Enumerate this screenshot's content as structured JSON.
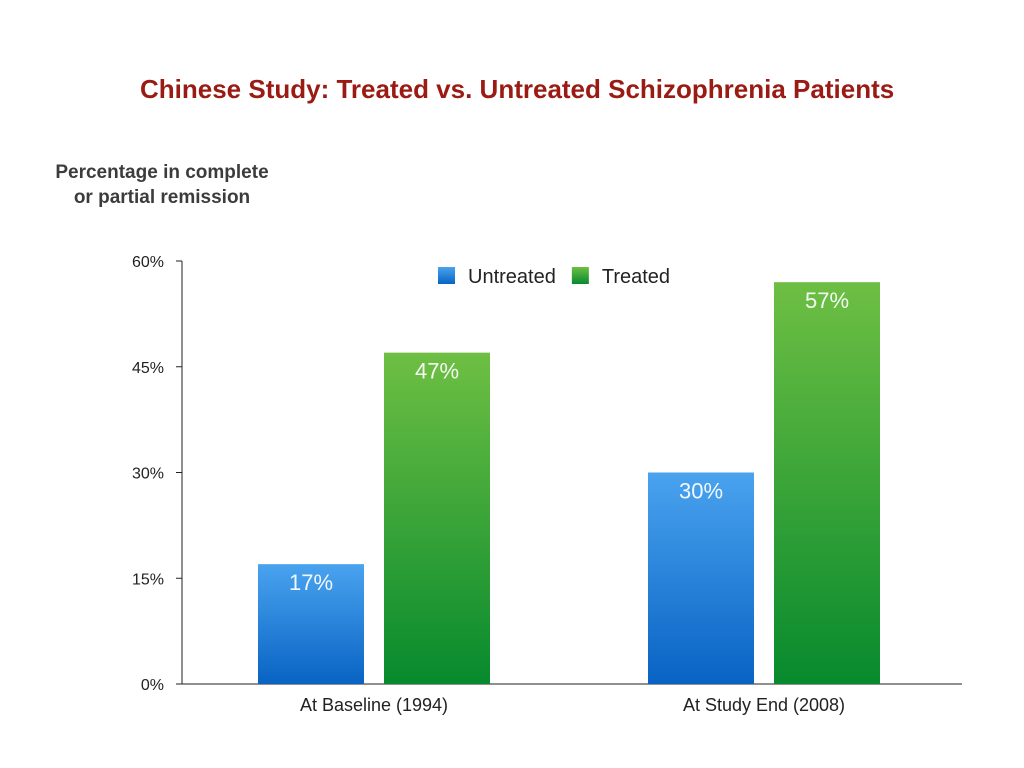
{
  "title": "Chinese Study: Treated vs. Untreated Schizophrenia Patients",
  "colors": {
    "title": "#9a1b14",
    "untreated_top": "#4aa3ee",
    "untreated_bottom": "#0863c4",
    "treated_top": "#6ebf43",
    "treated_bottom": "#078a2e"
  },
  "chart_data": {
    "type": "bar",
    "title": "Chinese Study: Treated vs. Untreated Schizophrenia Patients",
    "ylabel_lines": [
      "Percentage in complete",
      "or partial remission"
    ],
    "xlabel": "",
    "categories": [
      "At Baseline (1994)",
      "At Study End (2008)"
    ],
    "series": [
      {
        "name": "Untreated",
        "values": [
          17,
          30
        ],
        "labels": [
          "17%",
          "30%"
        ],
        "color": "#2f86dc"
      },
      {
        "name": "Treated",
        "values": [
          47,
          57
        ],
        "labels": [
          "47%",
          "57%"
        ],
        "color": "#3aa53a"
      }
    ],
    "ylim": [
      0,
      60
    ],
    "yticks": [
      0,
      15,
      30,
      45,
      60
    ],
    "ytick_labels": [
      "0%",
      "15%",
      "30%",
      "45%",
      "60%"
    ],
    "grid": false,
    "legend_position": "top-center"
  }
}
